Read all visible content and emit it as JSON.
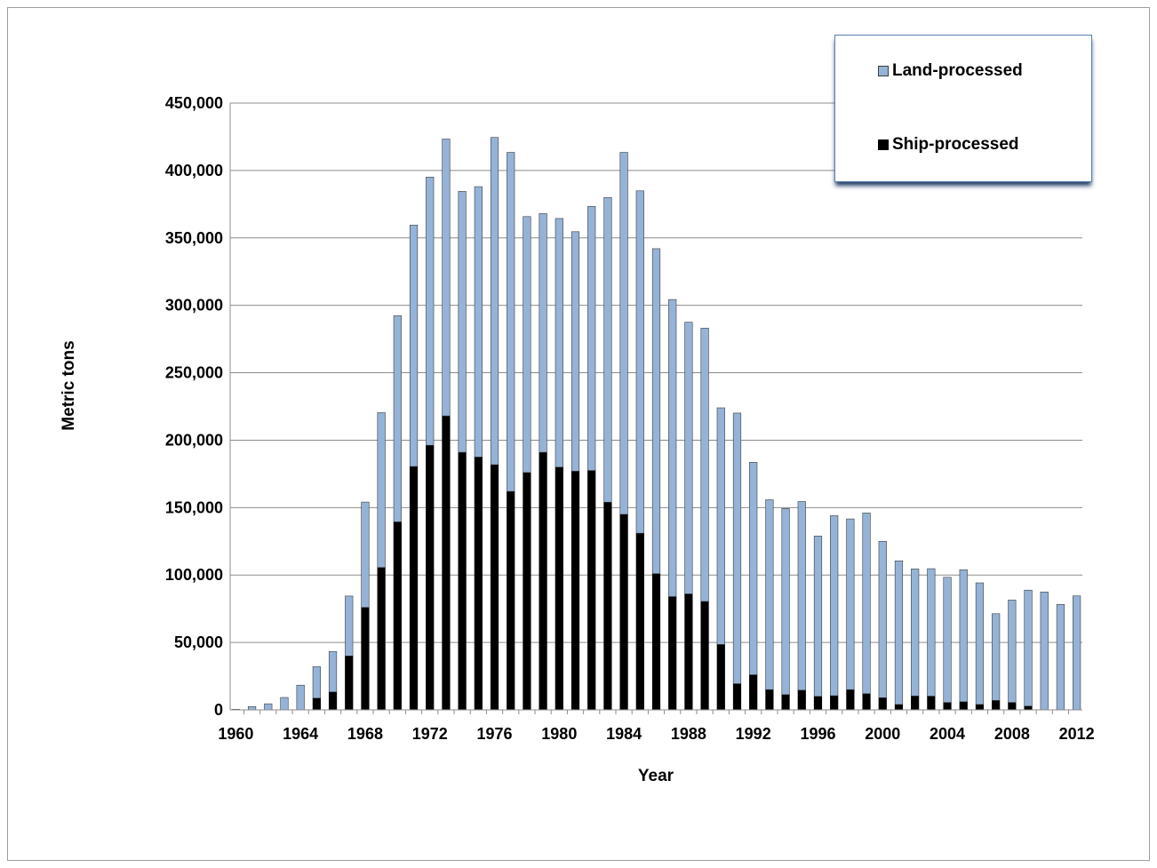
{
  "chart_data": {
    "type": "bar",
    "stacked": true,
    "xlabel": "Year",
    "ylabel": "Metric tons",
    "ylim": [
      0,
      450000
    ],
    "yticks": [
      0,
      50000,
      100000,
      150000,
      200000,
      250000,
      300000,
      350000,
      400000,
      450000
    ],
    "ytick_labels": [
      "0",
      "50,000",
      "100,000",
      "150,000",
      "200,000",
      "250,000",
      "300,000",
      "350,000",
      "400,000",
      "450,000"
    ],
    "xtick_labels": [
      "1960",
      "1964",
      "1968",
      "1972",
      "1976",
      "1980",
      "1984",
      "1988",
      "1992",
      "1996",
      "2000",
      "2004",
      "2008",
      "2012"
    ],
    "grid": "horizontal",
    "legend_position": "top-right",
    "categories": [
      1960,
      1961,
      1962,
      1963,
      1964,
      1965,
      1966,
      1967,
      1968,
      1969,
      1970,
      1971,
      1972,
      1973,
      1974,
      1975,
      1976,
      1977,
      1978,
      1979,
      1980,
      1981,
      1982,
      1983,
      1984,
      1985,
      1986,
      1987,
      1988,
      1989,
      1990,
      1991,
      1992,
      1993,
      1994,
      1995,
      1996,
      1997,
      1998,
      1999,
      2000,
      2001,
      2002,
      2003,
      2004,
      2005,
      2006,
      2007,
      2008,
      2009,
      2010,
      2011,
      2012
    ],
    "series": [
      {
        "name": "Ship-processed",
        "color": "#000000",
        "values": [
          0,
          0,
          0,
          0,
          0,
          8700,
          13300,
          40000,
          76000,
          105600,
          139400,
          180500,
          196200,
          218000,
          191000,
          187500,
          181800,
          162000,
          176000,
          191000,
          180000,
          177000,
          177500,
          154000,
          145000,
          131000,
          101000,
          84000,
          86000,
          80400,
          48500,
          19400,
          26000,
          15000,
          11300,
          14600,
          10000,
          10500,
          15000,
          12000,
          9000,
          4000,
          10300,
          10200,
          5500,
          6000,
          4000,
          7000,
          5500,
          2800,
          0,
          0,
          0
        ]
      },
      {
        "name": "Land-processed",
        "color": "#95b3d7",
        "values": [
          400,
          2400,
          4500,
          9200,
          18300,
          23300,
          29900,
          44400,
          78100,
          114800,
          152900,
          179000,
          198900,
          205300,
          193500,
          200500,
          242700,
          251400,
          189800,
          177000,
          184400,
          177600,
          195900,
          226000,
          268400,
          253900,
          241000,
          220300,
          201500,
          202700,
          175500,
          200700,
          157600,
          140800,
          138000,
          139900,
          118900,
          133500,
          126600,
          134000,
          116000,
          106500,
          94200,
          94500,
          92800,
          97900,
          90200,
          64300,
          75900,
          86000,
          87400,
          78200,
          84500
        ]
      }
    ]
  }
}
